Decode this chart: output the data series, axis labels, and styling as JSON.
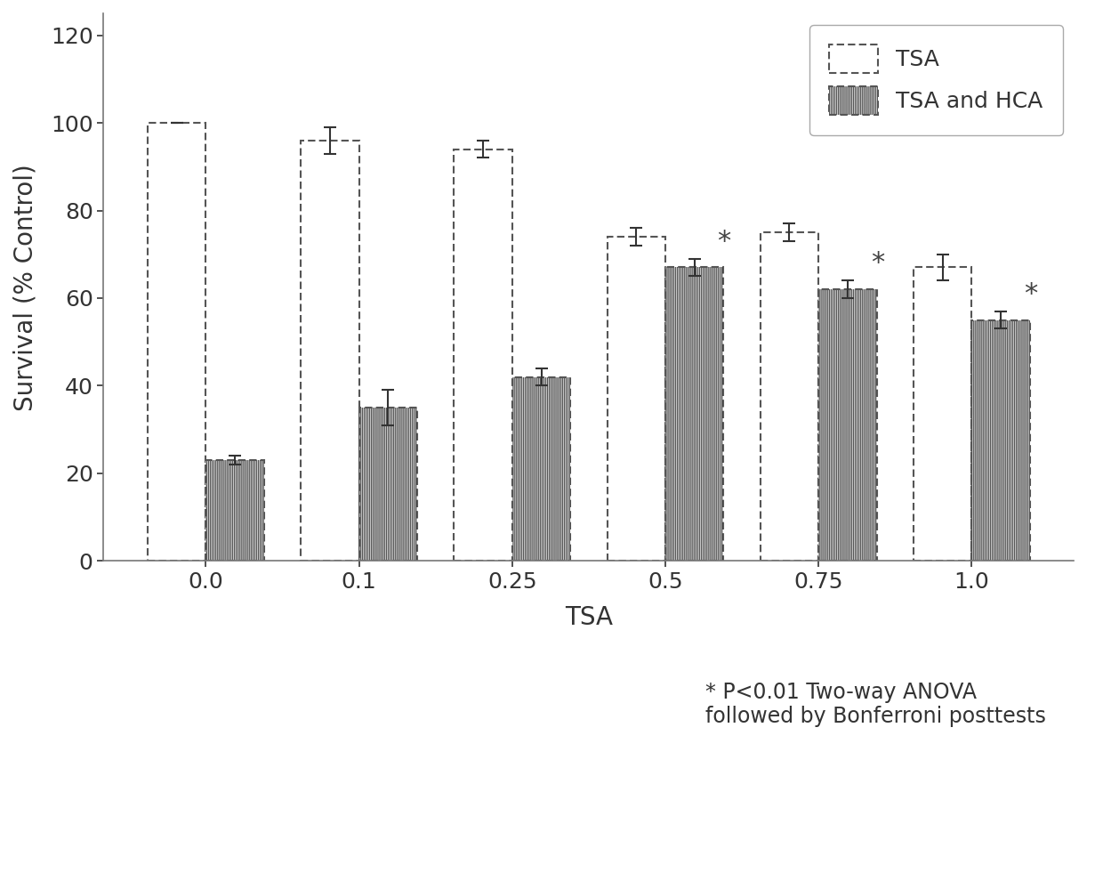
{
  "categories": [
    "0.0",
    "0.1",
    "0.25",
    "0.5",
    "0.75",
    "1.0"
  ],
  "tsa_values": [
    100,
    96,
    94,
    74,
    75,
    67
  ],
  "tsa_errors": [
    0,
    3,
    2,
    2,
    2,
    3
  ],
  "hca_values": [
    23,
    35,
    42,
    67,
    62,
    55
  ],
  "hca_errors": [
    1,
    4,
    2,
    2,
    2,
    2
  ],
  "ylabel": "Survival (% Control)",
  "xlabel": "TSA",
  "ylim": [
    0,
    125
  ],
  "yticks": [
    0,
    20,
    40,
    60,
    80,
    100,
    120
  ],
  "legend_labels": [
    "TSA",
    "TSA and HCA"
  ],
  "annotation_line1": "* P<0.01 Two-way ANOVA",
  "annotation_line2": "followed by Bonferroni posttests",
  "star_indices": [
    3,
    4,
    5
  ],
  "bar_width": 0.38,
  "tsa_facecolor": "white",
  "hca_facecolor": "white",
  "hca_hatch": "||||||||",
  "edge_color": "#555555",
  "background_color": "white",
  "title_font_size": 20,
  "label_font_size": 20,
  "tick_font_size": 18,
  "legend_font_size": 18,
  "annot_font_size": 17,
  "spine_color": "#777777"
}
